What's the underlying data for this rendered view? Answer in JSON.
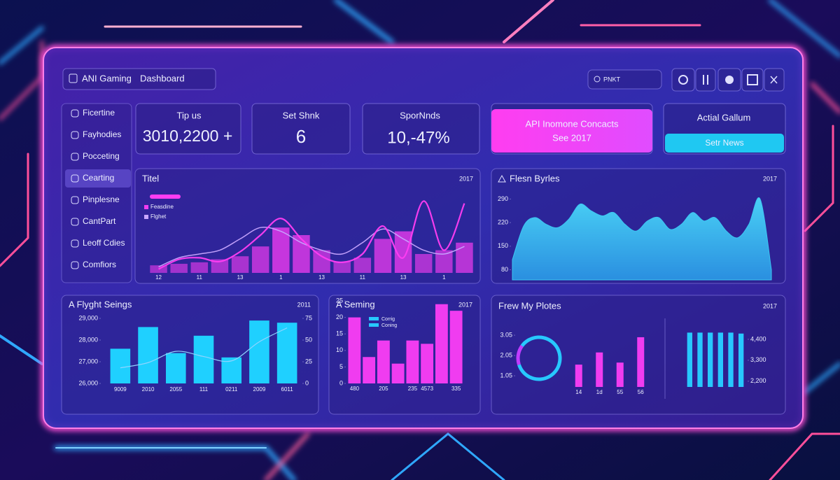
{
  "header": {
    "title": "ANI Gaming",
    "subtitle": "Dashboard",
    "search": "PNKT"
  },
  "sidebar": {
    "items": [
      "Ficertine",
      "Fayhodies",
      "Pocceting",
      "Cearting",
      "Pinplesne",
      "CantPart",
      "Leoff Cdies",
      "Comfiors"
    ],
    "active": 3
  },
  "kpis": [
    {
      "label": "Tip us",
      "value": "3010,2200 +"
    },
    {
      "label": "Set Shnk",
      "value": 6
    },
    {
      "label": "SporNnds",
      "value": "10,-47%"
    }
  ],
  "promo": {
    "title": "API Inomone Concacts",
    "subtitle": "See 2017"
  },
  "action": {
    "title": "Actial Gallum",
    "button": "Setr News"
  },
  "chart_data": [
    {
      "type": "combo",
      "title": "Titel",
      "subtitle": "2017",
      "categories": [
        "12",
        null,
        "11",
        null,
        "13",
        null,
        "1",
        null,
        "13",
        null,
        "11",
        null,
        "13",
        null,
        "1",
        null
      ],
      "ylim": [
        0,
        100
      ],
      "series": [
        {
          "name": "Feasdine",
          "kind": "bar",
          "color": "#f03cf0",
          "values": [
            10,
            12,
            14,
            18,
            22,
            35,
            60,
            50,
            30,
            15,
            20,
            45,
            55,
            25,
            30,
            40
          ]
        },
        {
          "name": "Flghet",
          "kind": "line",
          "color": "#c9a6ff",
          "values": [
            8,
            20,
            25,
            30,
            45,
            60,
            55,
            40,
            30,
            25,
            40,
            58,
            45,
            30,
            25,
            35
          ]
        },
        {
          "kind": "line",
          "color": "#ff3df2",
          "values": [
            5,
            18,
            20,
            15,
            28,
            50,
            72,
            45,
            22,
            14,
            25,
            62,
            20,
            95,
            30,
            92
          ]
        }
      ]
    },
    {
      "type": "area",
      "title": "Flesn Byrles",
      "subtitle": "2017",
      "color": "#3cc6f2",
      "values": [
        110,
        210,
        235,
        215,
        205,
        230,
        275,
        255,
        240,
        250,
        215,
        195,
        225,
        235,
        200,
        215,
        250,
        225,
        235,
        195,
        175,
        215,
        290,
        80
      ],
      "ylim": [
        50,
        320
      ],
      "yticks": [
        80,
        150,
        220,
        290
      ]
    },
    {
      "type": "bar_line",
      "title": "A Flyght Seings",
      "subtitle": "2011",
      "categories": [
        "9009",
        "2010",
        "2055",
        "111",
        "0211",
        "2009",
        "6011"
      ],
      "ylim": [
        26000,
        29000
      ],
      "yticks": [
        {
          "value": 26000,
          "label": "26,000"
        },
        {
          "value": 27000,
          "label": "27,000"
        },
        {
          "value": 28000,
          "label": "28,000"
        },
        {
          "value": 29000,
          "label": "29,000"
        }
      ],
      "y2lim": [
        0,
        75
      ],
      "y2ticks": [
        0,
        25,
        50,
        75
      ],
      "series": [
        {
          "color": "#1fd0ff",
          "values": [
            27600,
            28600,
            27400,
            28200,
            27200,
            28900,
            28800
          ]
        },
        {
          "color": "#8fd4ff",
          "axis": "y2",
          "values": [
            18,
            24,
            37,
            31,
            26,
            48,
            64
          ]
        }
      ]
    },
    {
      "type": "bar",
      "title": "A Seming",
      "subtitle": "2017",
      "color": "#f03cf0",
      "categories": [
        "480",
        null,
        "205",
        null,
        "235",
        "4573",
        null,
        "335"
      ],
      "values": [
        20,
        8,
        13,
        6,
        13,
        12,
        24,
        22
      ],
      "ylim": [
        0,
        25
      ],
      "yticks": [
        0,
        5,
        10,
        15,
        20,
        25
      ],
      "legend": [
        {
          "name": "Corrig",
          "color": "#27c8ff"
        },
        {
          "name": "Coning",
          "color": "#27c8ff"
        }
      ]
    },
    {
      "type": "donut",
      "title": "Frew My Plotes",
      "subtitle": "2017",
      "values": [
        85,
        15
      ],
      "colors": [
        "#27c8ff",
        "#c03cff"
      ]
    },
    {
      "type": "bar",
      "color": "#f03cf0",
      "categories": [
        "14",
        "1d",
        "55",
        "56"
      ],
      "values": [
        1.6,
        2.2,
        1.7,
        2.95
      ],
      "ylim": [
        0.5,
        3.5
      ],
      "yticks": [
        1.05,
        2.05,
        3.05
      ]
    },
    {
      "type": "bar",
      "color": "#27c8ff",
      "axis_side": "right",
      "values": [
        4750,
        4750,
        4750,
        4750,
        4750,
        4700
      ],
      "ylim": [
        1900,
        4800
      ],
      "yticks": [
        {
          "value": 2200,
          "label": "2,200"
        },
        {
          "value": 3300,
          "label": "3,300"
        },
        {
          "value": 4400,
          "label": "4,400"
        }
      ]
    }
  ]
}
